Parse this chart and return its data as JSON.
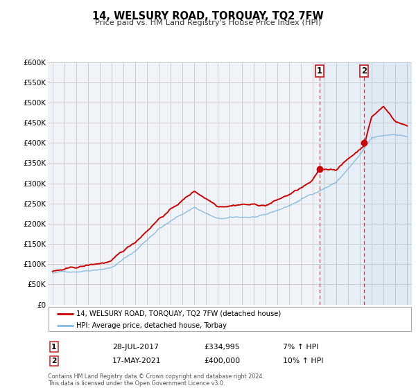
{
  "title": "14, WELSURY ROAD, TORQUAY, TQ2 7FW",
  "subtitle": "Price paid vs. HM Land Registry's House Price Index (HPI)",
  "ylim": [
    0,
    600000
  ],
  "yticks": [
    0,
    50000,
    100000,
    150000,
    200000,
    250000,
    300000,
    350000,
    400000,
    450000,
    500000,
    550000,
    600000
  ],
  "xlim_start": 1994.6,
  "xlim_end": 2025.4,
  "red_color": "#cc0000",
  "blue_color": "#88bbdd",
  "background_color": "#f0f4f8",
  "grid_color": "#cccccc",
  "legend1_label": "14, WELSURY ROAD, TORQUAY, TQ2 7FW (detached house)",
  "legend2_label": "HPI: Average price, detached house, Torbay",
  "annotation1_num": "1",
  "annotation1_date": "28-JUL-2017",
  "annotation1_price": "£334,995",
  "annotation1_hpi": "7% ↑ HPI",
  "annotation1_year": 2017.58,
  "annotation1_value": 334995,
  "annotation2_num": "2",
  "annotation2_date": "17-MAY-2021",
  "annotation2_price": "£400,000",
  "annotation2_hpi": "10% ↑ HPI",
  "annotation2_year": 2021.37,
  "annotation2_value": 400000,
  "footer": "Contains HM Land Registry data © Crown copyright and database right 2024.\nThis data is licensed under the Open Government Licence v3.0.",
  "hpi_control_years": [
    1995,
    1997,
    2000,
    2002,
    2004,
    2007,
    2009,
    2011,
    2013,
    2015,
    2017,
    2019,
    2021,
    2022,
    2023,
    2024,
    2025
  ],
  "hpi_control_vals": [
    78000,
    83000,
    98000,
    138000,
    195000,
    248000,
    218000,
    220000,
    222000,
    245000,
    275000,
    305000,
    370000,
    410000,
    415000,
    420000,
    415000
  ],
  "red_control_years": [
    1995,
    1997,
    2000,
    2002,
    2004,
    2007,
    2009,
    2011,
    2013,
    2015,
    2017,
    2017.58,
    2019,
    2021,
    2021.37,
    2022,
    2023,
    2024,
    2025
  ],
  "red_control_vals": [
    82000,
    88000,
    103000,
    148000,
    210000,
    278000,
    245000,
    255000,
    252000,
    278000,
    308000,
    334995,
    338000,
    388000,
    400000,
    470000,
    495000,
    460000,
    448000
  ]
}
